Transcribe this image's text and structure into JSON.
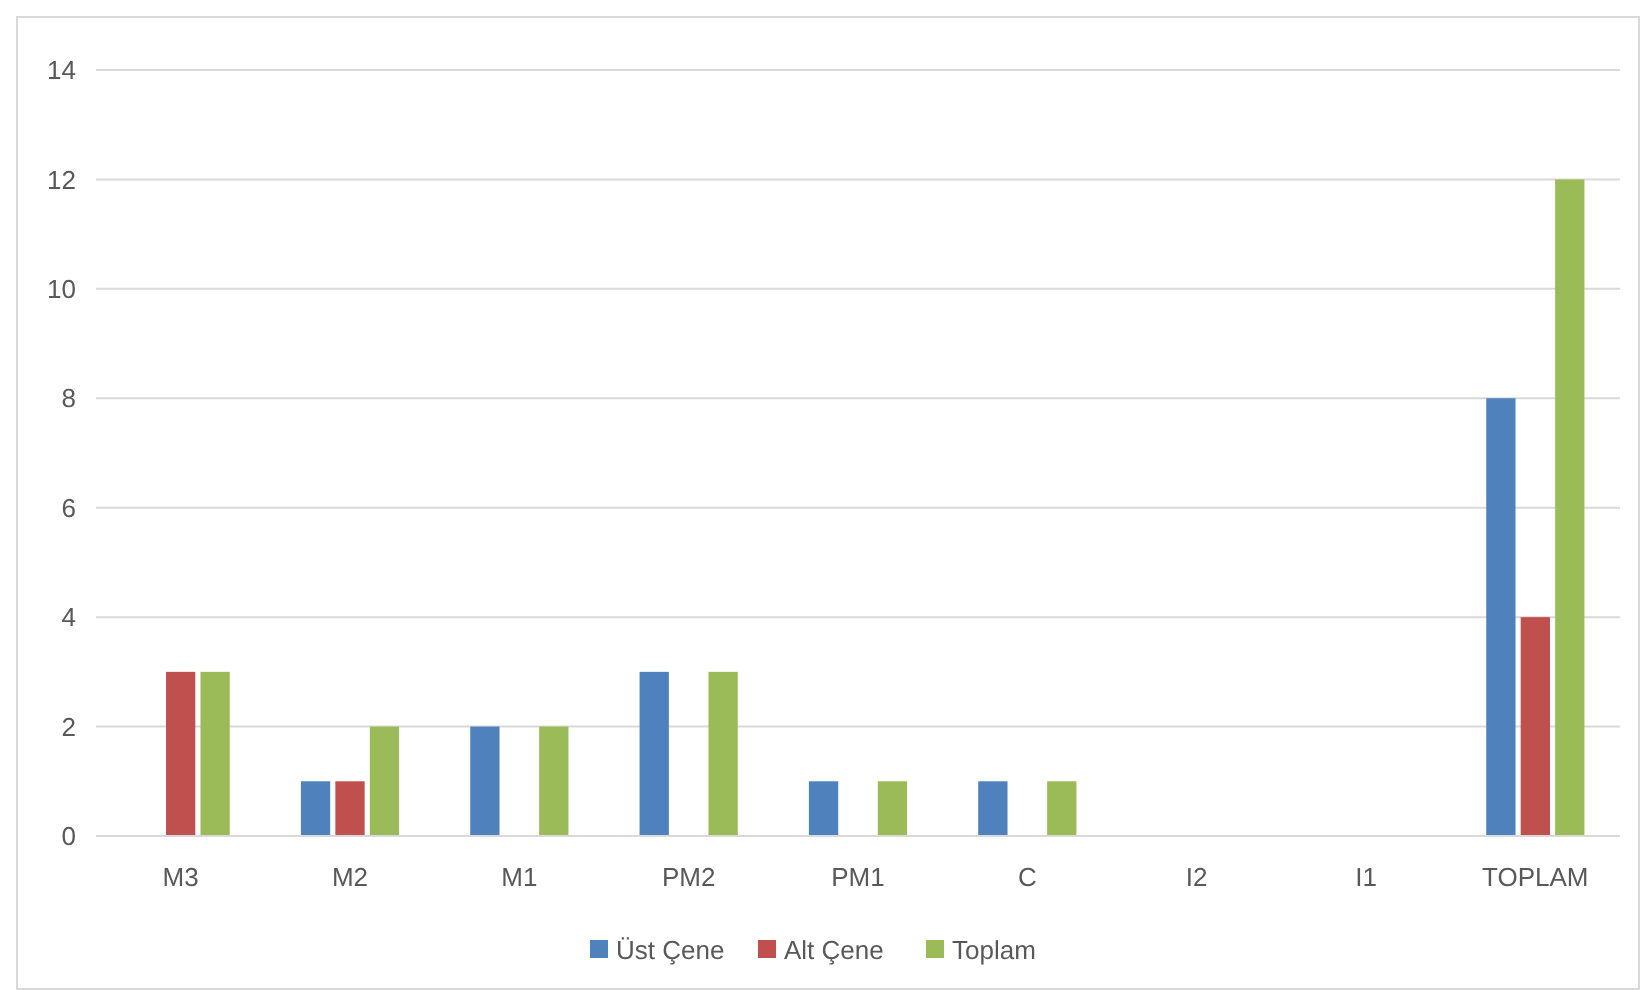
{
  "chart_data": {
    "type": "bar",
    "categories": [
      "M3",
      "M2",
      "M1",
      "PM2",
      "PM1",
      "C",
      "I2",
      "I1",
      "TOPLAM"
    ],
    "series": [
      {
        "name": "Üst Çene",
        "color": "#4f81bd",
        "values": [
          0,
          1,
          2,
          3,
          1,
          1,
          0,
          0,
          8
        ]
      },
      {
        "name": "Alt Çene",
        "color": "#c0504d",
        "values": [
          3,
          1,
          0,
          0,
          0,
          0,
          0,
          0,
          4
        ]
      },
      {
        "name": "Toplam",
        "color": "#9bbb59",
        "values": [
          3,
          2,
          2,
          3,
          1,
          1,
          0,
          0,
          12
        ]
      }
    ],
    "ylim": [
      0,
      14
    ],
    "yticks": [
      0,
      2,
      4,
      6,
      8,
      10,
      12,
      14
    ],
    "grid": "y",
    "legend": "bottom"
  }
}
